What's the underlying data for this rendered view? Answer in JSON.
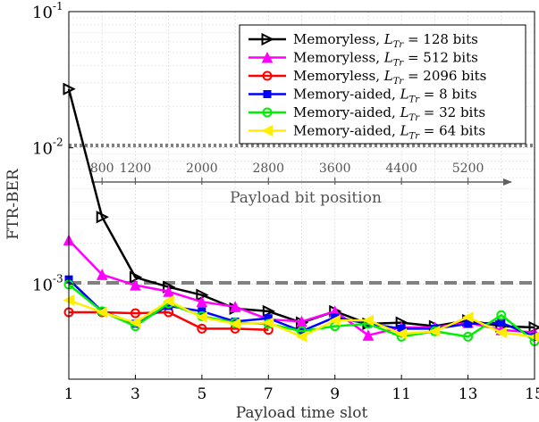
{
  "chart_data": {
    "type": "line",
    "title": "",
    "xlabel": "Payload time slot",
    "ylabel": "FTR-BER",
    "y_scale": "log",
    "xlim": [
      1,
      15
    ],
    "ylim": [
      0.0002,
      0.1
    ],
    "x_ticks": [
      1,
      3,
      5,
      7,
      9,
      11,
      13,
      15
    ],
    "y_ticks": [
      {
        "value": 0.001,
        "base": "10",
        "exp": "-3"
      },
      {
        "value": 0.01,
        "base": "10",
        "exp": "-2"
      },
      {
        "value": 0.1,
        "base": "10",
        "exp": "-1"
      }
    ],
    "grid": true,
    "legend_position": "top-right",
    "series": [
      {
        "label_prefix": "Memoryless, ",
        "label_sub": "Tr",
        "label_value": "128 bits",
        "color": "#000000",
        "marker": "triangle-right",
        "x": [
          1,
          2,
          3,
          4,
          5,
          6,
          7,
          8,
          9,
          10,
          11,
          12,
          13,
          14,
          15
        ],
        "y": [
          0.027,
          0.0031,
          0.00112,
          0.00095,
          0.00083,
          0.00066,
          0.00063,
          0.00052,
          0.00063,
          0.00051,
          0.00052,
          0.00049,
          0.00054,
          0.00049,
          0.00048
        ]
      },
      {
        "label_prefix": "Memoryless, ",
        "label_sub": "Tr",
        "label_value": "512 bits",
        "color": "#ff00ff",
        "marker": "triangle-up",
        "x": [
          1,
          2,
          3,
          4,
          5,
          6,
          7,
          8,
          9,
          10,
          11,
          12,
          13,
          14,
          15
        ],
        "y": [
          0.0021,
          0.00117,
          0.00098,
          0.00088,
          0.00074,
          0.00068,
          0.00055,
          0.00053,
          0.00063,
          0.00042,
          0.00048,
          0.00048,
          0.00052,
          0.00046,
          0.00044
        ]
      },
      {
        "label_prefix": "Memoryless, ",
        "label_sub": "Tr",
        "label_value": "2096 bits",
        "color": "#ff0000",
        "marker": "circle",
        "x": [
          1,
          2,
          3,
          4,
          5,
          6,
          7
        ],
        "y": [
          0.00062,
          0.00062,
          0.00061,
          0.00062,
          0.00047,
          0.00047,
          0.00046
        ]
      },
      {
        "label_prefix": "Memory-aided, ",
        "label_sub": "Tr",
        "label_value": "8 bits",
        "color": "#0000ff",
        "marker": "square",
        "x": [
          1,
          2,
          3,
          4,
          5,
          6,
          7,
          8,
          9,
          10,
          11,
          12,
          13,
          14,
          15
        ],
        "y": [
          0.00108,
          0.00063,
          0.00051,
          0.00069,
          0.00063,
          0.00053,
          0.00056,
          0.00045,
          0.00057,
          0.00051,
          0.00047,
          0.00047,
          0.00051,
          0.00052,
          0.00041
        ]
      },
      {
        "label_prefix": "Memory-aided, ",
        "label_sub": "Tr",
        "label_value": "32 bits",
        "color": "#00ee00",
        "marker": "circle",
        "x": [
          1,
          2,
          3,
          4,
          5,
          6,
          7,
          8,
          9,
          10,
          11,
          12,
          13,
          14,
          15
        ],
        "y": [
          0.00099,
          0.00063,
          0.00049,
          0.00072,
          0.00058,
          0.00052,
          0.00051,
          0.00045,
          0.00049,
          0.00051,
          0.00041,
          0.00045,
          0.00041,
          0.00059,
          0.00038
        ]
      },
      {
        "label_prefix": "Memory-aided, ",
        "label_sub": "Tr",
        "label_value": "64 bits",
        "color": "#ffee00",
        "marker": "triangle-left",
        "x": [
          1,
          2,
          3,
          4,
          5,
          6,
          7,
          8,
          9,
          10,
          11,
          12,
          13,
          14,
          15
        ],
        "y": [
          0.00076,
          0.00062,
          0.00052,
          0.00075,
          0.00057,
          0.00051,
          0.00052,
          0.00041,
          0.00054,
          0.00054,
          0.00043,
          0.00045,
          0.00057,
          0.00044,
          0.00041
        ]
      }
    ],
    "reference_lines": [
      {
        "y": 0.0104,
        "style": "dotted",
        "color": "#808080"
      },
      {
        "y": 0.00102,
        "style": "dashed",
        "color": "#808080"
      }
    ],
    "secondary_axis": {
      "label": "Payload bit position",
      "ticks": [
        "800",
        "1200",
        "2000",
        "2800",
        "3600",
        "4400",
        "5200"
      ],
      "tick_at_slot": [
        2,
        3,
        5,
        7,
        9,
        11,
        13
      ]
    }
  }
}
